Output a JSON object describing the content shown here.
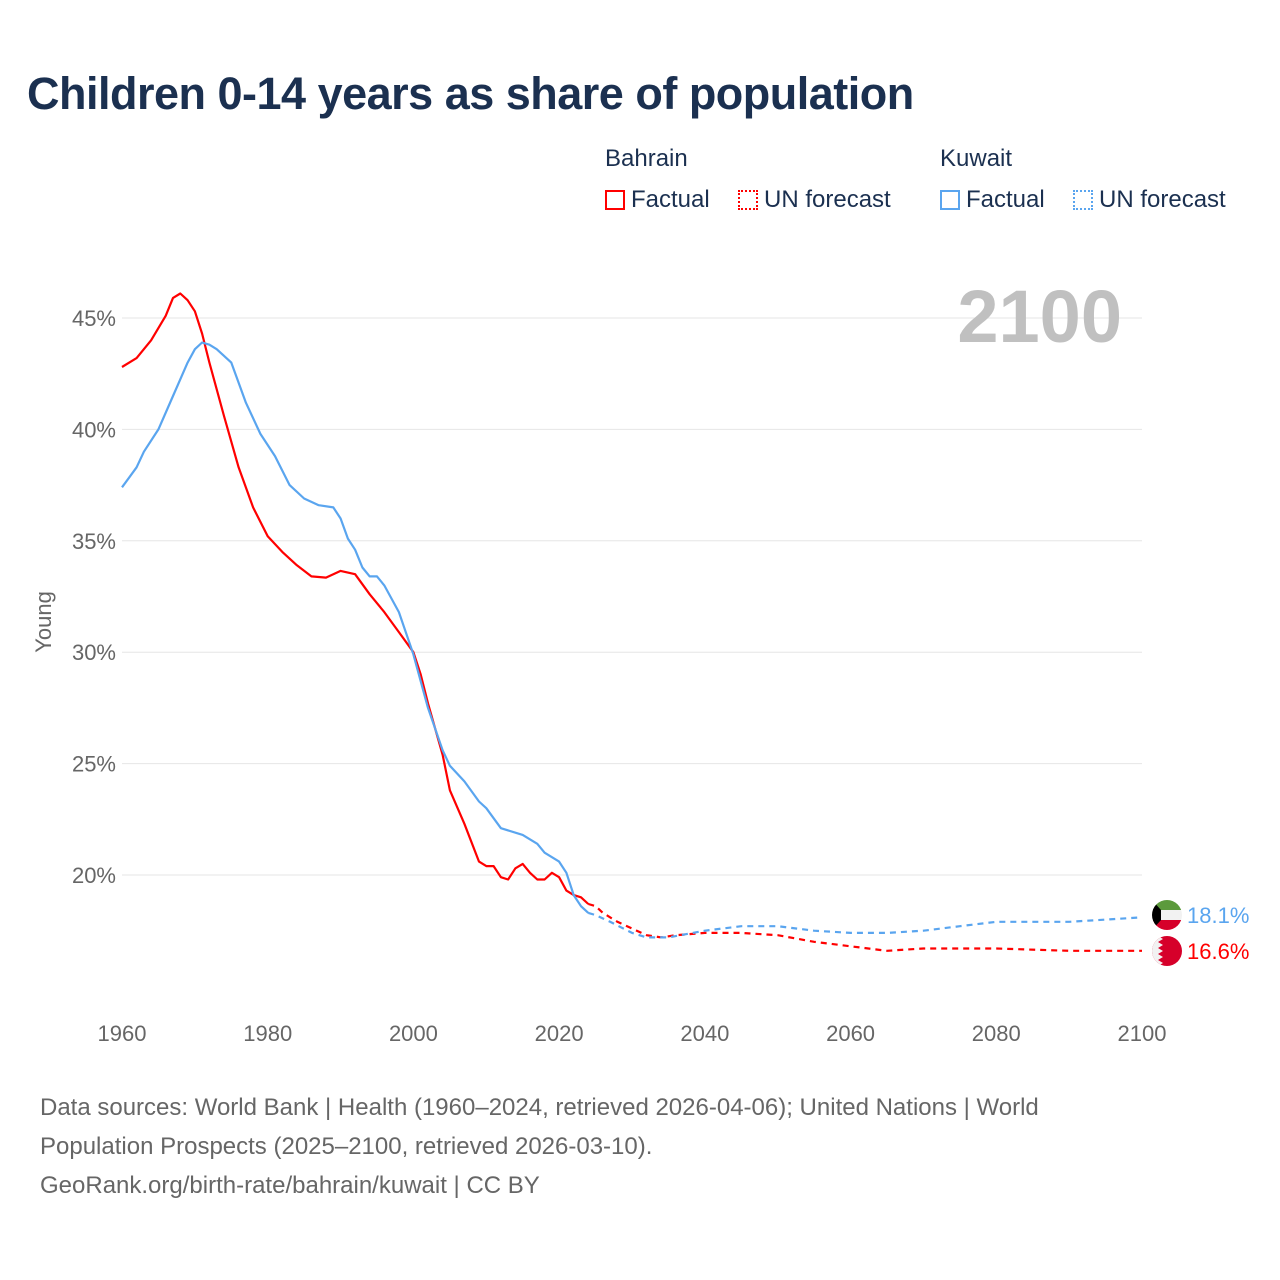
{
  "title": "Children 0-14 years as share of population",
  "legend": {
    "groups": [
      {
        "country": "Bahrain",
        "factual_label": "Factual",
        "forecast_label": "UN forecast",
        "color": "#ff0000"
      },
      {
        "country": "Kuwait",
        "factual_label": "Factual",
        "forecast_label": "UN forecast",
        "color": "#5aa5ef"
      }
    ]
  },
  "year_label": "2100",
  "footer": {
    "line1": "Data sources: World Bank | Health (1960–2024, retrieved 2026-04-06); United Nations | World",
    "line2": "Population Prospects (2025–2100, retrieved 2026-03-10).",
    "line3": "GeoRank.org/birth-rate/bahrain/kuwait | CC BY"
  },
  "chart_data": {
    "type": "line",
    "title": "Children 0-14 years as share of population",
    "xlabel": "",
    "ylabel": "Young",
    "xlim": [
      1960,
      2100
    ],
    "ylim": [
      14.3,
      47.2
    ],
    "x_ticks": [
      "1960",
      "1980",
      "2000",
      "2020",
      "2040",
      "2060",
      "2080",
      "2100"
    ],
    "y_ticks": [
      "20%",
      "25%",
      "30%",
      "35%",
      "40%",
      "45%"
    ],
    "grid": true,
    "forecast_start": 2024,
    "end_labels": {
      "Bahrain": "16.6%",
      "Kuwait": "18.1%"
    },
    "series": [
      {
        "name": "Bahrain",
        "color": "#ff0000",
        "x": [
          1960,
          1962,
          1964,
          1966,
          1967,
          1968,
          1969,
          1970,
          1971,
          1972,
          1974,
          1976,
          1978,
          1980,
          1982,
          1984,
          1986,
          1988,
          1990,
          1992,
          1994,
          1996,
          1998,
          2000,
          2001,
          2002,
          2004,
          2005,
          2007,
          2009,
          2010,
          2011,
          2012,
          2013,
          2014,
          2015,
          2016,
          2017,
          2018,
          2019,
          2020,
          2021,
          2022,
          2023,
          2024,
          2025,
          2026,
          2028,
          2030,
          2032,
          2034,
          2036,
          2040,
          2045,
          2050,
          2055,
          2060,
          2065,
          2070,
          2080,
          2090,
          2095,
          2100
        ],
        "y": [
          42.8,
          43.2,
          44.0,
          45.1,
          45.9,
          46.1,
          45.8,
          45.3,
          44.3,
          43.0,
          40.6,
          38.3,
          36.5,
          35.2,
          34.5,
          33.9,
          33.4,
          33.35,
          33.65,
          33.5,
          32.6,
          31.8,
          30.9,
          30.0,
          29.0,
          27.7,
          25.4,
          23.8,
          22.3,
          20.6,
          20.4,
          20.4,
          19.9,
          19.8,
          20.3,
          20.5,
          20.1,
          19.8,
          19.8,
          20.1,
          19.9,
          19.3,
          19.1,
          19.0,
          18.7,
          18.6,
          18.3,
          17.9,
          17.6,
          17.3,
          17.2,
          17.3,
          17.4,
          17.4,
          17.3,
          17.0,
          16.8,
          16.6,
          16.7,
          16.7,
          16.6,
          16.6,
          16.6
        ]
      },
      {
        "name": "Kuwait",
        "color": "#5aa5ef",
        "x": [
          1960,
          1962,
          1963,
          1965,
          1967,
          1969,
          1970,
          1971,
          1972,
          1973,
          1975,
          1977,
          1979,
          1981,
          1983,
          1985,
          1987,
          1989,
          1990,
          1991,
          1992,
          1993,
          1994,
          1995,
          1996,
          1998,
          2000,
          2002,
          2004,
          2005,
          2007,
          2009,
          2010,
          2012,
          2015,
          2017,
          2018,
          2020,
          2021,
          2022,
          2023,
          2024,
          2025,
          2027,
          2030,
          2032,
          2035,
          2040,
          2045,
          2050,
          2055,
          2060,
          2065,
          2070,
          2075,
          2080,
          2090,
          2095,
          2100
        ],
        "y": [
          37.4,
          38.3,
          39.0,
          40.0,
          41.5,
          43.0,
          43.6,
          43.9,
          43.8,
          43.6,
          43.0,
          41.2,
          39.8,
          38.8,
          37.5,
          36.9,
          36.6,
          36.5,
          36.0,
          35.1,
          34.6,
          33.8,
          33.4,
          33.4,
          33.0,
          31.8,
          29.9,
          27.5,
          25.6,
          24.9,
          24.2,
          23.3,
          23.0,
          22.1,
          21.8,
          21.4,
          21.0,
          20.6,
          20.1,
          19.1,
          18.6,
          18.3,
          18.2,
          17.9,
          17.4,
          17.2,
          17.2,
          17.5,
          17.7,
          17.7,
          17.5,
          17.4,
          17.4,
          17.5,
          17.7,
          17.9,
          17.9,
          18.0,
          18.1
        ]
      }
    ]
  }
}
